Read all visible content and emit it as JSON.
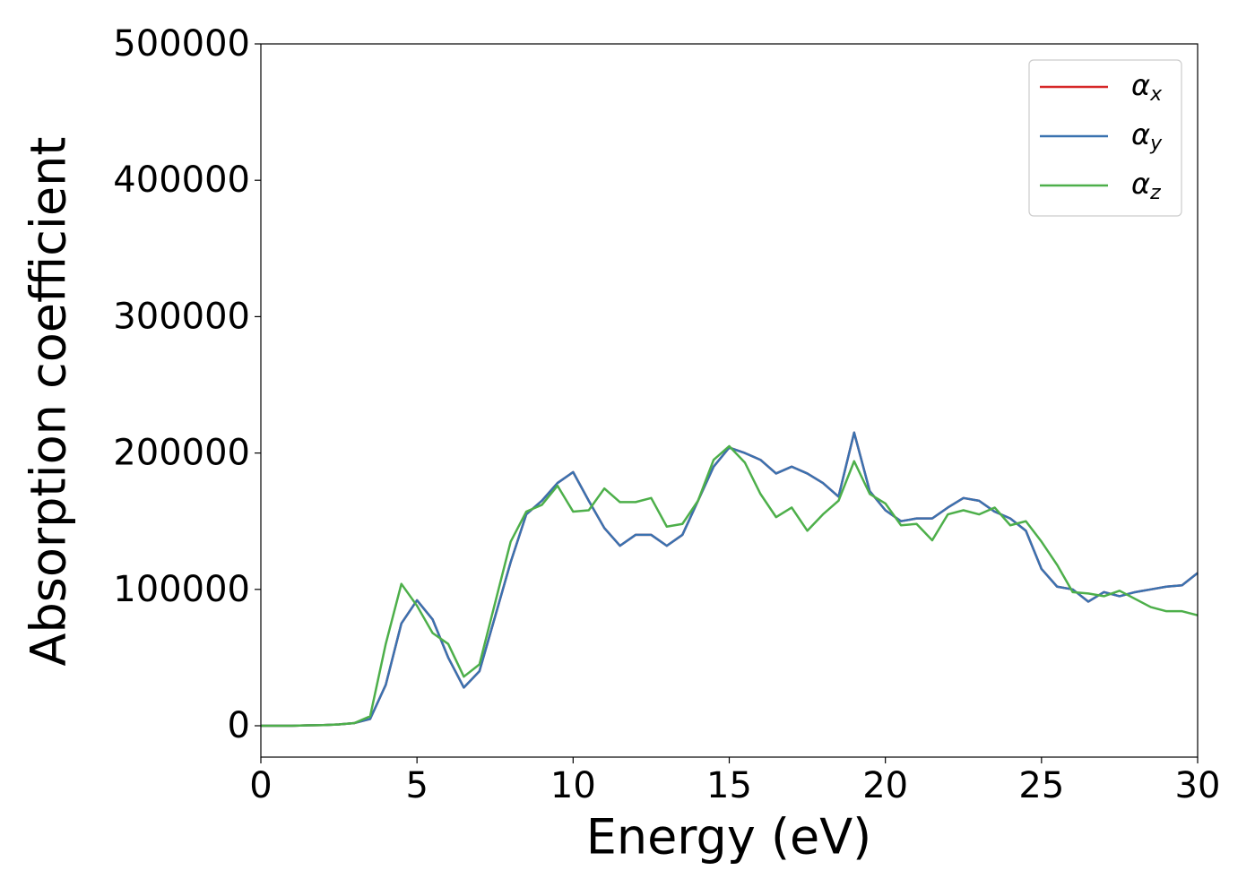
{
  "chart_data": {
    "type": "line",
    "x_label": "Energy (eV)",
    "y_label": "Absorption coefficient",
    "x": [
      0,
      0.5,
      1,
      1.5,
      2,
      2.5,
      3,
      3.5,
      4,
      4.5,
      5,
      5.5,
      6,
      6.5,
      7,
      7.5,
      8,
      8.5,
      9,
      9.5,
      10,
      10.5,
      11,
      11.5,
      12,
      12.5,
      13,
      13.5,
      14,
      14.5,
      15,
      15.5,
      16,
      16.5,
      17,
      17.5,
      18,
      18.5,
      19,
      19.5,
      20,
      20.5,
      21,
      21.5,
      22,
      22.5,
      23,
      23.5,
      24,
      24.5,
      25,
      25.5,
      26,
      26.5,
      27,
      27.5,
      28,
      28.5,
      29,
      29.5,
      30
    ],
    "series": [
      {
        "name": "αx",
        "color": "#d62728",
        "values": [
          0,
          0,
          0,
          300,
          500,
          1000,
          2000,
          5000,
          30000,
          75000,
          92000,
          78000,
          50000,
          28000,
          40000,
          80000,
          120000,
          155000,
          165000,
          178000,
          186000,
          165000,
          145000,
          132000,
          140000,
          140000,
          132000,
          140000,
          165000,
          190000,
          204000,
          200000,
          195000,
          185000,
          190000,
          185000,
          178000,
          168000,
          215000,
          172000,
          158000,
          150000,
          152000,
          152000,
          160000,
          167000,
          165000,
          157000,
          152000,
          143000,
          115000,
          102000,
          100000,
          91000,
          98000,
          95000,
          98000,
          100000,
          102000,
          103000,
          112000
        ]
      },
      {
        "name": "αy",
        "color": "#3a72b0",
        "values": [
          0,
          0,
          0,
          300,
          500,
          1000,
          2000,
          5000,
          30000,
          75000,
          92000,
          78000,
          50000,
          28000,
          40000,
          80000,
          120000,
          155000,
          165000,
          178000,
          186000,
          165000,
          145000,
          132000,
          140000,
          140000,
          132000,
          140000,
          165000,
          190000,
          204000,
          200000,
          195000,
          185000,
          190000,
          185000,
          178000,
          168000,
          215000,
          172000,
          158000,
          150000,
          152000,
          152000,
          160000,
          167000,
          165000,
          157000,
          152000,
          143000,
          115000,
          102000,
          100000,
          91000,
          98000,
          95000,
          98000,
          100000,
          102000,
          103000,
          112000
        ]
      },
      {
        "name": "αz",
        "color": "#4daf4a",
        "values": [
          0,
          0,
          0,
          300,
          500,
          1000,
          2000,
          7000,
          60000,
          104000,
          88000,
          68000,
          60000,
          36000,
          45000,
          90000,
          135000,
          157000,
          162000,
          176000,
          157000,
          158000,
          174000,
          164000,
          164000,
          167000,
          146000,
          148000,
          165000,
          195000,
          205000,
          193000,
          170000,
          153000,
          160000,
          143000,
          155000,
          165000,
          194000,
          170000,
          163000,
          147000,
          148000,
          136000,
          155000,
          158000,
          155000,
          160000,
          147000,
          150000,
          135000,
          118000,
          98000,
          97000,
          95000,
          99000,
          93000,
          87000,
          84000,
          84000,
          81000
        ]
      }
    ],
    "xlim": [
      0,
      30
    ],
    "xticks": [
      0,
      5,
      10,
      15,
      20,
      25,
      30
    ],
    "ylim": [
      -23000,
      500000
    ],
    "yticks": [
      0,
      100000,
      200000,
      300000,
      400000,
      500000
    ],
    "legend": "upper right",
    "grid": false
  }
}
